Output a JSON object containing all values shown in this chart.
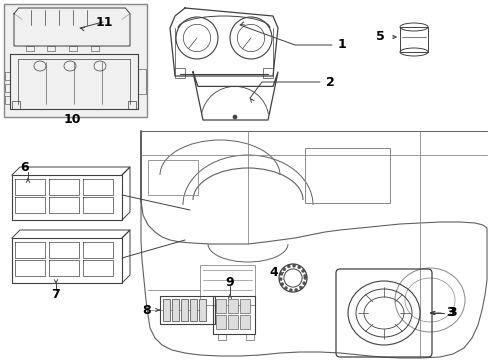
{
  "bg": "#ffffff",
  "lc": "#404040",
  "lc2": "#606060",
  "lc3": "#888888",
  "fig_w": 4.89,
  "fig_h": 3.6,
  "dpi": 100
}
